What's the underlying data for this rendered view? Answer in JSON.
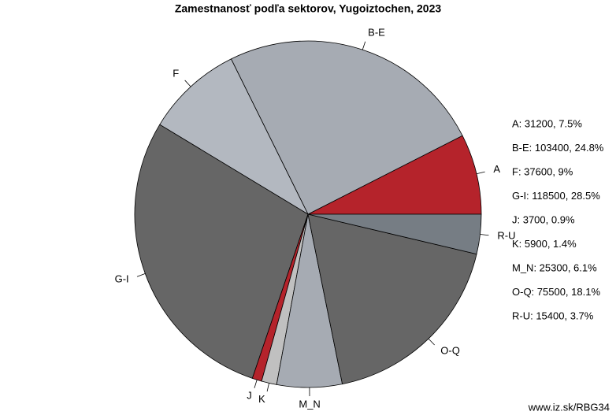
{
  "chart_data": {
    "type": "pie",
    "title": "Zamestnanosť podľa sektorov, Yugoiztochen, 2023",
    "categories": [
      "A",
      "B-E",
      "F",
      "G-I",
      "J",
      "K",
      "M_N",
      "O-Q",
      "R-U"
    ],
    "values": [
      31200,
      103400,
      37600,
      118500,
      3700,
      5900,
      25300,
      75500,
      15400
    ],
    "colors": [
      "#b5232b",
      "#a6abb3",
      "#b3b8c0",
      "#666666",
      "#b5232b",
      "#c0c0c0",
      "#a6abb3",
      "#666666",
      "#767d84"
    ],
    "legend": [
      "A: 31200, 7.5%",
      "B-E: 103400, 24.8%",
      "F: 37600, 9%",
      "G-I: 118500, 28.5%",
      "J: 3700, 0.9%",
      "K: 5900, 1.4%",
      "M_N: 25300, 6.1%",
      "O-Q: 75500, 18.1%",
      "R-U: 15400, 3.7%"
    ],
    "source": "www.iz.sk/RBG34"
  }
}
